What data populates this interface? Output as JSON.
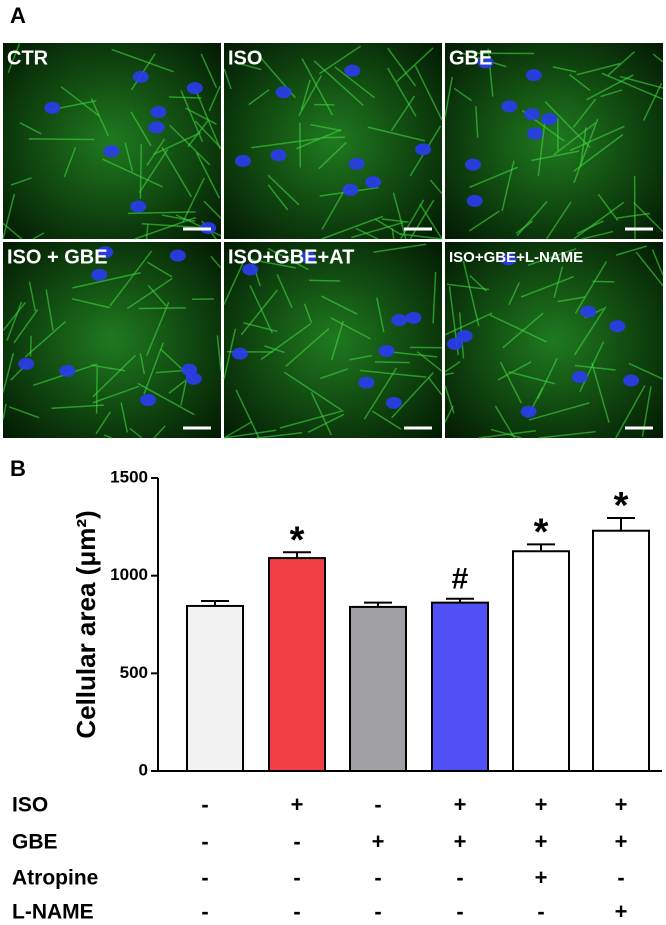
{
  "panel_labels": [
    "A",
    "B"
  ],
  "images": [
    {
      "label": "CTR"
    },
    {
      "label": "ISO"
    },
    {
      "label": "GBE"
    },
    {
      "label": "ISO + GBE"
    },
    {
      "label": "ISO+GBE+AT"
    },
    {
      "label": "ISO+GBE+L-NAME"
    }
  ],
  "chart_data": {
    "type": "bar",
    "ylabel": "Cellular area (μm²)",
    "categories": [
      null,
      null,
      null,
      null,
      null,
      null
    ],
    "values": [
      845,
      1090,
      840,
      862,
      1125,
      1230
    ],
    "errors": [
      25,
      30,
      22,
      20,
      35,
      65
    ],
    "colors": [
      "#f2f2f2",
      "#f04045",
      "#a0a0a4",
      "#5050f5",
      "#ffffff",
      "#ffffff"
    ],
    "annotations": [
      {
        "index": 1,
        "text": "*"
      },
      {
        "index": 3,
        "text": "#"
      },
      {
        "index": 4,
        "text": "*"
      },
      {
        "index": 5,
        "text": "*"
      }
    ],
    "ylim": [
      0,
      1500
    ],
    "yticks": [
      0,
      500,
      1000,
      1500
    ],
    "condition_table": [
      {
        "name": "ISO",
        "signs": [
          "-",
          "+",
          "-",
          "+",
          "+",
          "+"
        ]
      },
      {
        "name": "GBE",
        "signs": [
          "-",
          "-",
          "+",
          "+",
          "+",
          "+"
        ]
      },
      {
        "name": "Atropine",
        "signs": [
          "-",
          "-",
          "-",
          "-",
          "+",
          "-"
        ]
      },
      {
        "name": "L-NAME",
        "signs": [
          "-",
          "-",
          "-",
          "-",
          "-",
          "+"
        ]
      }
    ]
  }
}
